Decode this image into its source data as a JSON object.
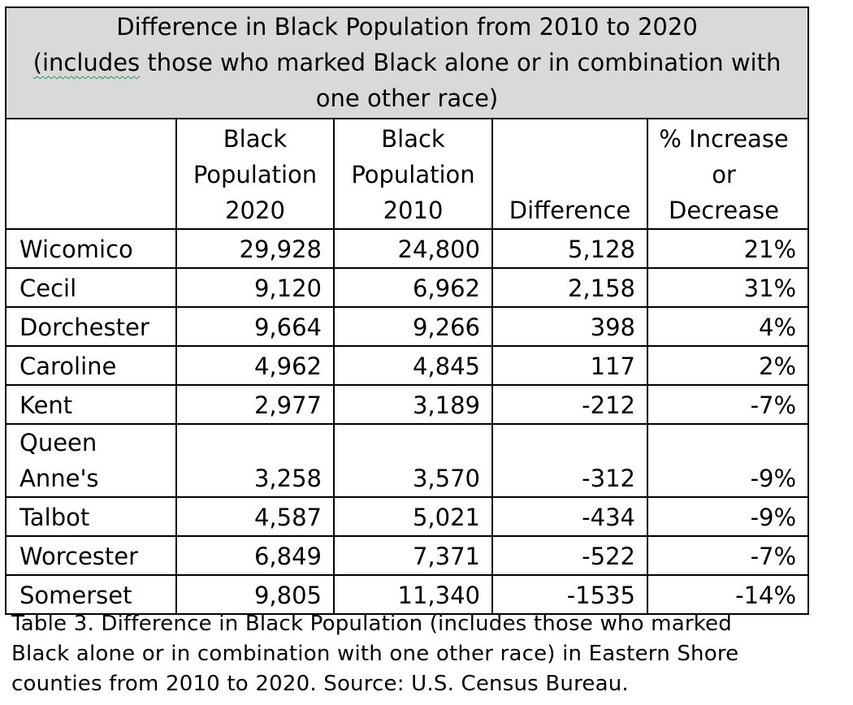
{
  "table": {
    "title_line1": "Difference in Black Population from 2010 to 2020",
    "title_line2_word": "(includes",
    "title_line2_rest": " those who marked Black alone or in combination with",
    "title_line3": "one other race)",
    "columns": [
      "",
      "Black Population 2020",
      "Black Population 2010",
      "Difference",
      "% Increase or Decrease"
    ],
    "rows": [
      {
        "county": "Wicomico",
        "pop2020": "29,928",
        "pop2010": "24,800",
        "difference": "5,128",
        "pct": "21%"
      },
      {
        "county": "Cecil",
        "pop2020": "9,120",
        "pop2010": "6,962",
        "difference": "2,158",
        "pct": "31%"
      },
      {
        "county": "Dorchester",
        "pop2020": "9,664",
        "pop2010": "9,266",
        "difference": "398",
        "pct": "4%"
      },
      {
        "county": "Caroline",
        "pop2020": "4,962",
        "pop2010": "4,845",
        "difference": "117",
        "pct": "2%"
      },
      {
        "county": "Kent",
        "pop2020": "2,977",
        "pop2010": "3,189",
        "difference": "-212",
        "pct": "-7%"
      },
      {
        "county": "Queen Anne's",
        "pop2020": "3,258",
        "pop2010": "3,570",
        "difference": "-312",
        "pct": "-9%"
      },
      {
        "county": "Talbot",
        "pop2020": "4,587",
        "pop2010": "5,021",
        "difference": "-434",
        "pct": "-9%"
      },
      {
        "county": "Worcester",
        "pop2020": "6,849",
        "pop2010": "7,371",
        "difference": "-522",
        "pct": "-7%"
      },
      {
        "county": "Somerset",
        "pop2020": "9,805",
        "pop2010": "11,340",
        "difference": "-1535",
        "pct": "-14%"
      }
    ]
  },
  "caption": {
    "line1": "Table 3. Difference in Black Population (includes those who marked",
    "line2": "Black alone or in combination with one other race) in Eastern Shore",
    "line3": "counties from 2010 to 2020. Source: U.S. Census Bureau."
  },
  "colors": {
    "title_background": "#d9d9d9",
    "border": "#000000",
    "spellcheck_underline": "#2e8b57"
  }
}
